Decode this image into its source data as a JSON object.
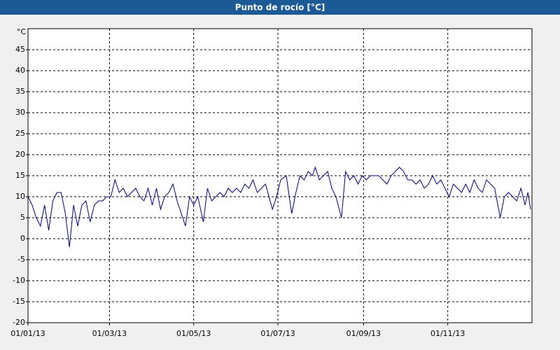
{
  "chart_data": {
    "type": "line",
    "title": "Punto de rocío [°C]",
    "y_label": "°C",
    "x": [
      "01/01/13",
      "04/01/13",
      "07/01/13",
      "10/01/13",
      "13/01/13",
      "16/01/13",
      "19/01/13",
      "22/01/13",
      "25/01/13",
      "28/01/13",
      "31/01/13",
      "03/02/13",
      "06/02/13",
      "09/02/13",
      "12/02/13",
      "15/02/13",
      "18/02/13",
      "21/02/13",
      "24/02/13",
      "27/02/13",
      "02/03/13",
      "05/03/13",
      "08/03/13",
      "11/03/13",
      "14/03/13",
      "17/03/13",
      "20/03/13",
      "23/03/13",
      "26/03/13",
      "29/03/13",
      "01/04/13",
      "04/04/13",
      "07/04/13",
      "10/04/13",
      "13/04/13",
      "16/04/13",
      "19/04/13",
      "22/04/13",
      "25/04/13",
      "28/04/13",
      "01/05/13",
      "04/05/13",
      "08/05/13",
      "11/05/13",
      "14/05/13",
      "17/05/13",
      "20/05/13",
      "23/05/13",
      "26/05/13",
      "29/05/13",
      "01/06/13",
      "04/06/13",
      "07/06/13",
      "10/06/13",
      "13/06/13",
      "16/06/13",
      "19/06/13",
      "22/06/13",
      "27/06/13",
      "30/06/13",
      "03/07/13",
      "07/07/13",
      "11/07/13",
      "14/07/13",
      "17/07/13",
      "20/07/13",
      "23/07/13",
      "26/07/13",
      "28/07/13",
      "31/07/13",
      "03/08/13",
      "06/08/13",
      "09/08/13",
      "12/08/13",
      "16/08/13",
      "19/08/13",
      "22/08/13",
      "25/08/13",
      "28/08/13",
      "31/08/13",
      "03/09/13",
      "06/09/13",
      "09/09/13",
      "12/09/13",
      "15/09/13",
      "18/09/13",
      "21/09/13",
      "24/09/13",
      "27/09/13",
      "30/09/13",
      "03/10/13",
      "06/10/13",
      "09/10/13",
      "12/10/13",
      "15/10/13",
      "18/10/13",
      "21/10/13",
      "24/10/13",
      "27/10/13",
      "30/10/13",
      "02/11/13",
      "05/11/13",
      "08/11/13",
      "11/11/13",
      "14/11/13",
      "17/11/13",
      "20/11/13",
      "23/11/13",
      "26/11/13",
      "29/11/13",
      "02/12/13",
      "05/12/13",
      "09/12/13",
      "12/12/13",
      "15/12/13",
      "18/12/13",
      "21/12/13",
      "24/12/13",
      "27/12/13",
      "29/12/13",
      "31/12/13"
    ],
    "series": [
      {
        "name": "Punto de rocío",
        "color": "#000080",
        "values": [
          10,
          8,
          5,
          3,
          8,
          2,
          9,
          11,
          11,
          6,
          -2,
          8,
          3,
          8,
          9,
          4,
          8,
          9,
          9,
          10,
          10,
          14,
          11,
          12,
          10,
          11,
          12,
          10,
          9,
          12,
          8,
          12,
          7,
          10,
          11,
          13,
          9,
          6,
          3,
          10,
          8,
          10,
          4,
          12,
          9,
          10,
          11,
          10,
          12,
          11,
          12,
          11,
          13,
          12,
          14,
          11,
          12,
          13,
          7,
          10,
          14,
          15,
          6,
          11,
          15,
          14,
          16,
          15,
          17,
          14,
          15,
          16,
          12,
          10,
          5,
          16,
          14,
          15,
          13,
          15,
          14,
          15,
          15,
          15,
          14,
          13,
          15,
          16,
          17,
          16,
          14,
          14,
          13,
          14,
          12,
          13,
          15,
          13,
          14,
          12,
          10,
          13,
          12,
          11,
          13,
          11,
          14,
          12,
          11,
          14,
          13,
          12,
          5,
          10,
          11,
          10,
          9,
          12,
          8,
          11,
          7
        ]
      }
    ],
    "xlim": [
      "01/01/13",
      "01/01/14"
    ],
    "xticks": [
      "01/01/13",
      "01/03/13",
      "01/05/13",
      "01/07/13",
      "01/09/13",
      "01/11/13"
    ],
    "ylim": [
      -20,
      50
    ],
    "yticks": [
      -20,
      -15,
      -10,
      -5,
      0,
      5,
      10,
      15,
      20,
      25,
      30,
      35,
      40,
      45
    ],
    "grid": true
  }
}
